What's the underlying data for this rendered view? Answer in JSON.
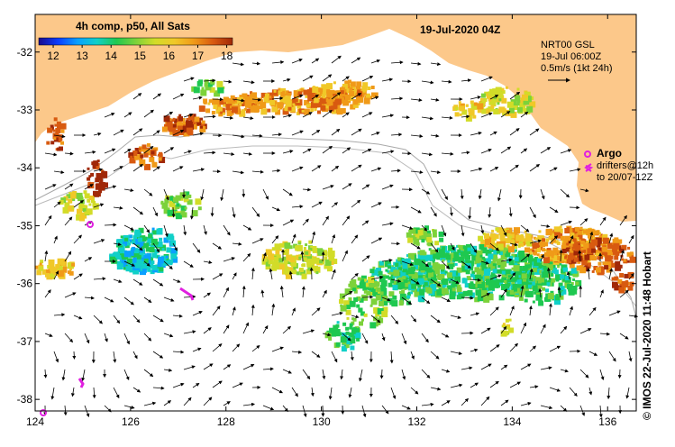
{
  "map": {
    "title": "19-Jul-2020 04Z",
    "colorbar": {
      "title": "4h comp, p50, All Sats",
      "ticks": [
        "12",
        "13",
        "14",
        "15",
        "16",
        "17",
        "18"
      ],
      "vmin": 11.5,
      "vmax": 18.2,
      "colors": [
        "#1a0a8c",
        "#0a3cff",
        "#0aa0ff",
        "#10d0c8",
        "#1ec850",
        "#7cd23a",
        "#d2dc28",
        "#f0c828",
        "#f09a18",
        "#d85a10",
        "#a02808"
      ]
    },
    "info": {
      "line1": "NRT00 GSL",
      "line2": "19-Jul 06:00Z",
      "line3": "0.5m/s (1kt 24h)"
    },
    "legend": {
      "argo": "Argo",
      "drifters1": "drifters@12h",
      "drifters2": "to 20/07-12Z"
    },
    "credit": "© IMOS 22-Jul-2020 11:48 Hobart",
    "x_ticks": [
      "124",
      "126",
      "128",
      "130",
      "132",
      "134",
      "136"
    ],
    "y_ticks": [
      "-32",
      "-33",
      "-34",
      "-35",
      "-36",
      "-37",
      "-38"
    ],
    "lon_range": [
      124,
      136.6
    ],
    "lat_range": [
      -38.2,
      -31.35
    ],
    "land_color": "#fcc88a",
    "argo_color": "#e020e0"
  }
}
